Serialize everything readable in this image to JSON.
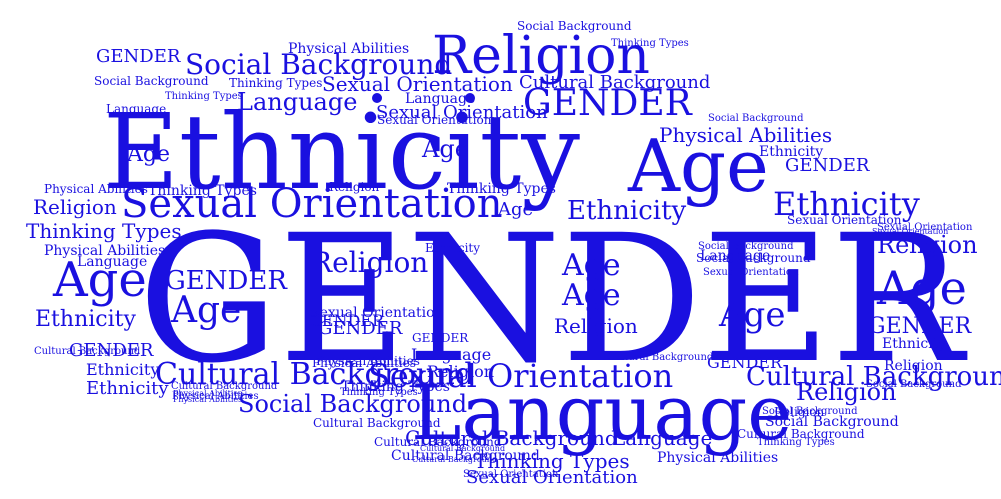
{
  "colors": {
    "text": "#1a10e0",
    "background": "#ffffff"
  },
  "words": [
    "GENDER",
    "Ethnicity",
    "Language",
    "Religion",
    "Age",
    "Sexual Orientation",
    "GENDER",
    "Social Background",
    "Age",
    "Ethnicity",
    "Sexual Orientation",
    "Cultural Background",
    "Age",
    "Age",
    "Physical Abilities",
    "Age",
    "Religion",
    "Social Background",
    "Language",
    "GENDER",
    "Language",
    "Religion",
    "Age",
    "Ethnicity",
    "Thinking Types",
    "GENDER",
    "Cultural Background",
    "GENDER",
    "Age",
    "Religion",
    "GENDER",
    "Ethnicity",
    "Sexual Orientation",
    "Physical Abilities",
    "Social Background",
    "Sexual Orientation",
    "Religion",
    "Age",
    "Religion",
    "GENDER",
    "Ethnicity",
    "Language",
    "Religion",
    "Language",
    "Cultural Background",
    "Thinking Types",
    "Ethnicity",
    "Age",
    "Language",
    "Religion",
    "Ethnicity",
    "GENDER",
    "Ethnicity",
    "Physical Abilities",
    "Religion",
    "Ethnicity",
    "Thinking Types",
    "Age",
    "GENDER",
    "GENDER",
    "Sexual Orientation",
    "Cultural Background",
    "Physical Abilities",
    "Religion",
    "Language",
    "Language",
    "Cultural Background",
    "Social Background",
    "Thinking Types",
    "Physical Abilities",
    "Social Background",
    "Sexual Orientation",
    "Cultural Background",
    "Physical Abilities",
    "Religion",
    "GENDER",
    "Sexual Orientation",
    "Thinking Types",
    "Social Background",
    "GENDER",
    "Thinking Types",
    "Ethnicity",
    "GENDER",
    "Religion",
    "Physical Abilities",
    "Language",
    "Sexual Orientation",
    "Ethnicity",
    "Social Background",
    "Cultural Background",
    "Social Background",
    "Thinking Types",
    "Social Background",
    "Cultural Background",
    "Social Background",
    "Sexual Orientation",
    "Sexual Orientation",
    "Language",
    "Thinking Types",
    "Social Background",
    "Cultural Background",
    "Physical Abilities",
    "Ethnicity",
    "Cultural Background",
    "Physical Abilities",
    "Thinking Types",
    "Social Background",
    "Sexual Orientation",
    "Cultural Background",
    "Physical Abilities",
    "Cultural Background",
    "Cultural Background",
    "Social Background",
    "Thinking Types",
    "Physical Abilities",
    "Sexual Orientation",
    "Social Background"
  ]
}
